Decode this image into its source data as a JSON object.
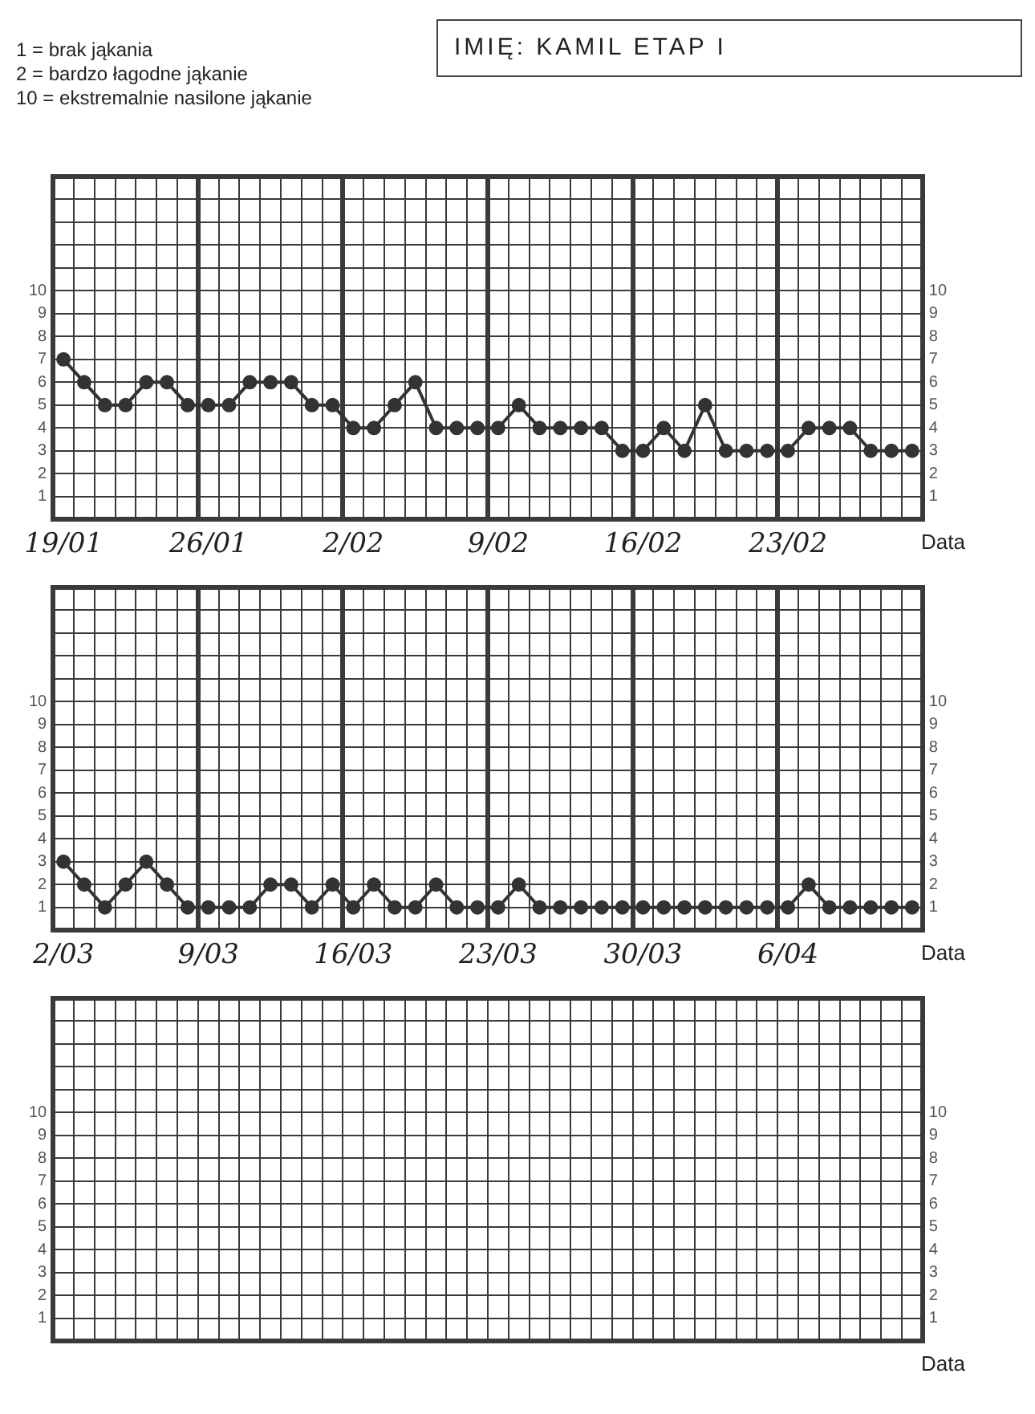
{
  "chart_data": [
    {
      "type": "line",
      "title": "IMIĘ: KAMIL ETAP I",
      "annotations": [
        "1 = brak jąkania",
        "2 = bardzo łagodne jąkanie",
        "10 = ekstremalnie nasilone jąkanie"
      ],
      "xlabel": "Data",
      "grid": true,
      "marker": "circle",
      "line_style": "solid",
      "categories": [
        "19/01",
        null,
        null,
        null,
        null,
        null,
        null,
        "26/01",
        null,
        null,
        null,
        null,
        null,
        null,
        "2/02",
        null,
        null,
        null,
        null,
        null,
        null,
        "9/02",
        null,
        null,
        null,
        null,
        null,
        null,
        "16/02",
        null,
        null,
        null,
        null,
        null,
        null,
        "23/02",
        null,
        null,
        null,
        null,
        null,
        null
      ],
      "ylim": [
        0,
        15
      ],
      "yticks": [
        {
          "value": 0,
          "label": null
        },
        1,
        2,
        3,
        4,
        5,
        6,
        7,
        8,
        9,
        10,
        {
          "value": 11,
          "label": null
        },
        {
          "value": 12,
          "label": null
        },
        {
          "value": 13,
          "label": null
        },
        {
          "value": 14,
          "label": null
        },
        {
          "value": 15,
          "label": null
        }
      ],
      "y2lim": [
        0,
        15
      ],
      "y2ticks": [
        1,
        2,
        3,
        4,
        5,
        6,
        7,
        8,
        9,
        10
      ],
      "series": [
        {
          "color": "#333333",
          "values": [
            7,
            6,
            5,
            5,
            6,
            6,
            5,
            5,
            5,
            6,
            6,
            6,
            5,
            5,
            4,
            4,
            5,
            6,
            4,
            4,
            4,
            4,
            5,
            4,
            4,
            4,
            4,
            3,
            3,
            4,
            3,
            5,
            3,
            3,
            3,
            3,
            4,
            4,
            4,
            3,
            3,
            3
          ]
        }
      ]
    },
    {
      "type": "line",
      "xlabel": "Data",
      "grid": true,
      "marker": "circle",
      "line_style": "solid",
      "categories": [
        "2/03",
        null,
        null,
        null,
        null,
        null,
        null,
        "9/03",
        null,
        null,
        null,
        null,
        null,
        null,
        "16/03",
        null,
        null,
        null,
        null,
        null,
        null,
        "23/03",
        null,
        null,
        null,
        null,
        null,
        null,
        "30/03",
        null,
        null,
        null,
        null,
        null,
        null,
        "6/04",
        null,
        null,
        null,
        null,
        null,
        null
      ],
      "ylim": [
        0,
        15
      ],
      "yticks": [
        {
          "value": 0,
          "label": null
        },
        1,
        2,
        3,
        4,
        5,
        6,
        7,
        8,
        9,
        10,
        {
          "value": 11,
          "label": null
        },
        {
          "value": 12,
          "label": null
        },
        {
          "value": 13,
          "label": null
        },
        {
          "value": 14,
          "label": null
        },
        {
          "value": 15,
          "label": null
        }
      ],
      "y2lim": [
        0,
        15
      ],
      "y2ticks": [
        1,
        2,
        3,
        4,
        5,
        6,
        7,
        8,
        9,
        10
      ],
      "series": [
        {
          "color": "#333333",
          "values": [
            3,
            2,
            1,
            2,
            3,
            2,
            1,
            1,
            1,
            1,
            2,
            2,
            1,
            2,
            1,
            2,
            1,
            1,
            2,
            1,
            1,
            1,
            2,
            1,
            1,
            1,
            1,
            1,
            1,
            1,
            1,
            1,
            1,
            1,
            1,
            1,
            2,
            1,
            1,
            1,
            1,
            1
          ]
        }
      ]
    },
    {
      "type": "line",
      "xlabel": "Data",
      "grid": true,
      "categories": [
        null,
        null,
        null,
        null,
        null,
        null,
        null,
        null,
        null,
        null,
        null,
        null,
        null,
        null,
        null,
        null,
        null,
        null,
        null,
        null,
        null,
        null,
        null,
        null,
        null,
        null,
        null,
        null,
        null,
        null,
        null,
        null,
        null,
        null,
        null,
        null,
        null,
        null,
        null,
        null,
        null,
        null
      ],
      "values": [
        null,
        null,
        null,
        null,
        null,
        null,
        null,
        null,
        null,
        null,
        null,
        null,
        null,
        null,
        null,
        null,
        null,
        null,
        null,
        null,
        null,
        null,
        null,
        null,
        null,
        null,
        null,
        null,
        null,
        null,
        null,
        null,
        null,
        null,
        null,
        null,
        null,
        null,
        null,
        null,
        null,
        null
      ],
      "ylim": [
        0,
        15
      ],
      "yticks": [
        {
          "value": 0,
          "label": null
        },
        1,
        2,
        3,
        4,
        5,
        6,
        7,
        8,
        9,
        10,
        {
          "value": 11,
          "label": null
        },
        {
          "value": 12,
          "label": null
        },
        {
          "value": 13,
          "label": null
        },
        {
          "value": 14,
          "label": null
        },
        {
          "value": 15,
          "label": null
        }
      ],
      "y2lim": [
        0,
        15
      ],
      "y2ticks": [
        1,
        2,
        3,
        4,
        5,
        6,
        7,
        8,
        9,
        10
      ]
    }
  ]
}
